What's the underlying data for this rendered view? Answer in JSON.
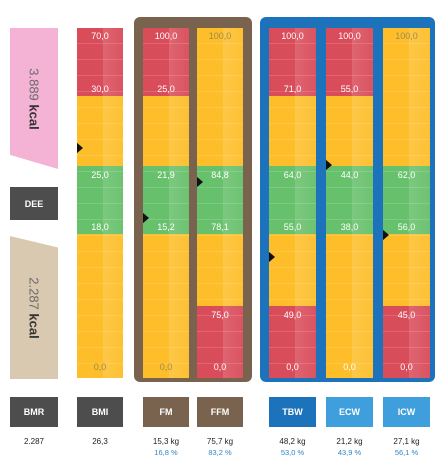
{
  "energy": {
    "upper_value": "3.889",
    "upper_unit": "kcal",
    "upper_color": "#f4b3d5",
    "middle_label": "DEE",
    "lower_value": "2.287",
    "lower_unit": "kcal",
    "lower_color": "#d8c9b0",
    "bottom_label": "BMR",
    "bottom_value": "2.287"
  },
  "colors": {
    "red": "#d94c5a",
    "yellow": "#fdbe2a",
    "green": "#67c06b",
    "dark_tile": "#4d4d4d",
    "brown": "#7a634e",
    "blue": "#1d73bb",
    "blue_light": "#3f9fdc"
  },
  "columns": [
    {
      "key": "bmi",
      "label": "BMI",
      "value": "26,3",
      "pct": "",
      "ticks": [
        "70,0",
        "30,0",
        "25,0",
        "18,0",
        "0,0"
      ]
    },
    {
      "key": "fm",
      "label": "FM",
      "value": "15,3 kg",
      "pct": "16,8 %",
      "ticks": [
        "100,0",
        "25,0",
        "21,9",
        "15,2",
        "0,0"
      ]
    },
    {
      "key": "ffm",
      "label": "FFM",
      "value": "75,7 kg",
      "pct": "83,2 %",
      "ticks": [
        "100,0",
        "84,8",
        "78,1",
        "75,0",
        "0,0"
      ]
    },
    {
      "key": "tbw",
      "label": "TBW",
      "value": "48,2 kg",
      "pct": "53,0 %",
      "ticks": [
        "100,0",
        "71,0",
        "64,0",
        "55,0",
        "49,0",
        "0,0"
      ]
    },
    {
      "key": "ecw",
      "label": "ECW",
      "value": "21,2 kg",
      "pct": "43,9 %",
      "ticks": [
        "100,0",
        "55,0",
        "44,0",
        "38,0",
        "0,0"
      ]
    },
    {
      "key": "icw",
      "label": "ICW",
      "value": "27,1 kg",
      "pct": "56,1 %",
      "ticks": [
        "100,0",
        "62,0",
        "56,0",
        "45,0",
        "0,0"
      ]
    }
  ]
}
